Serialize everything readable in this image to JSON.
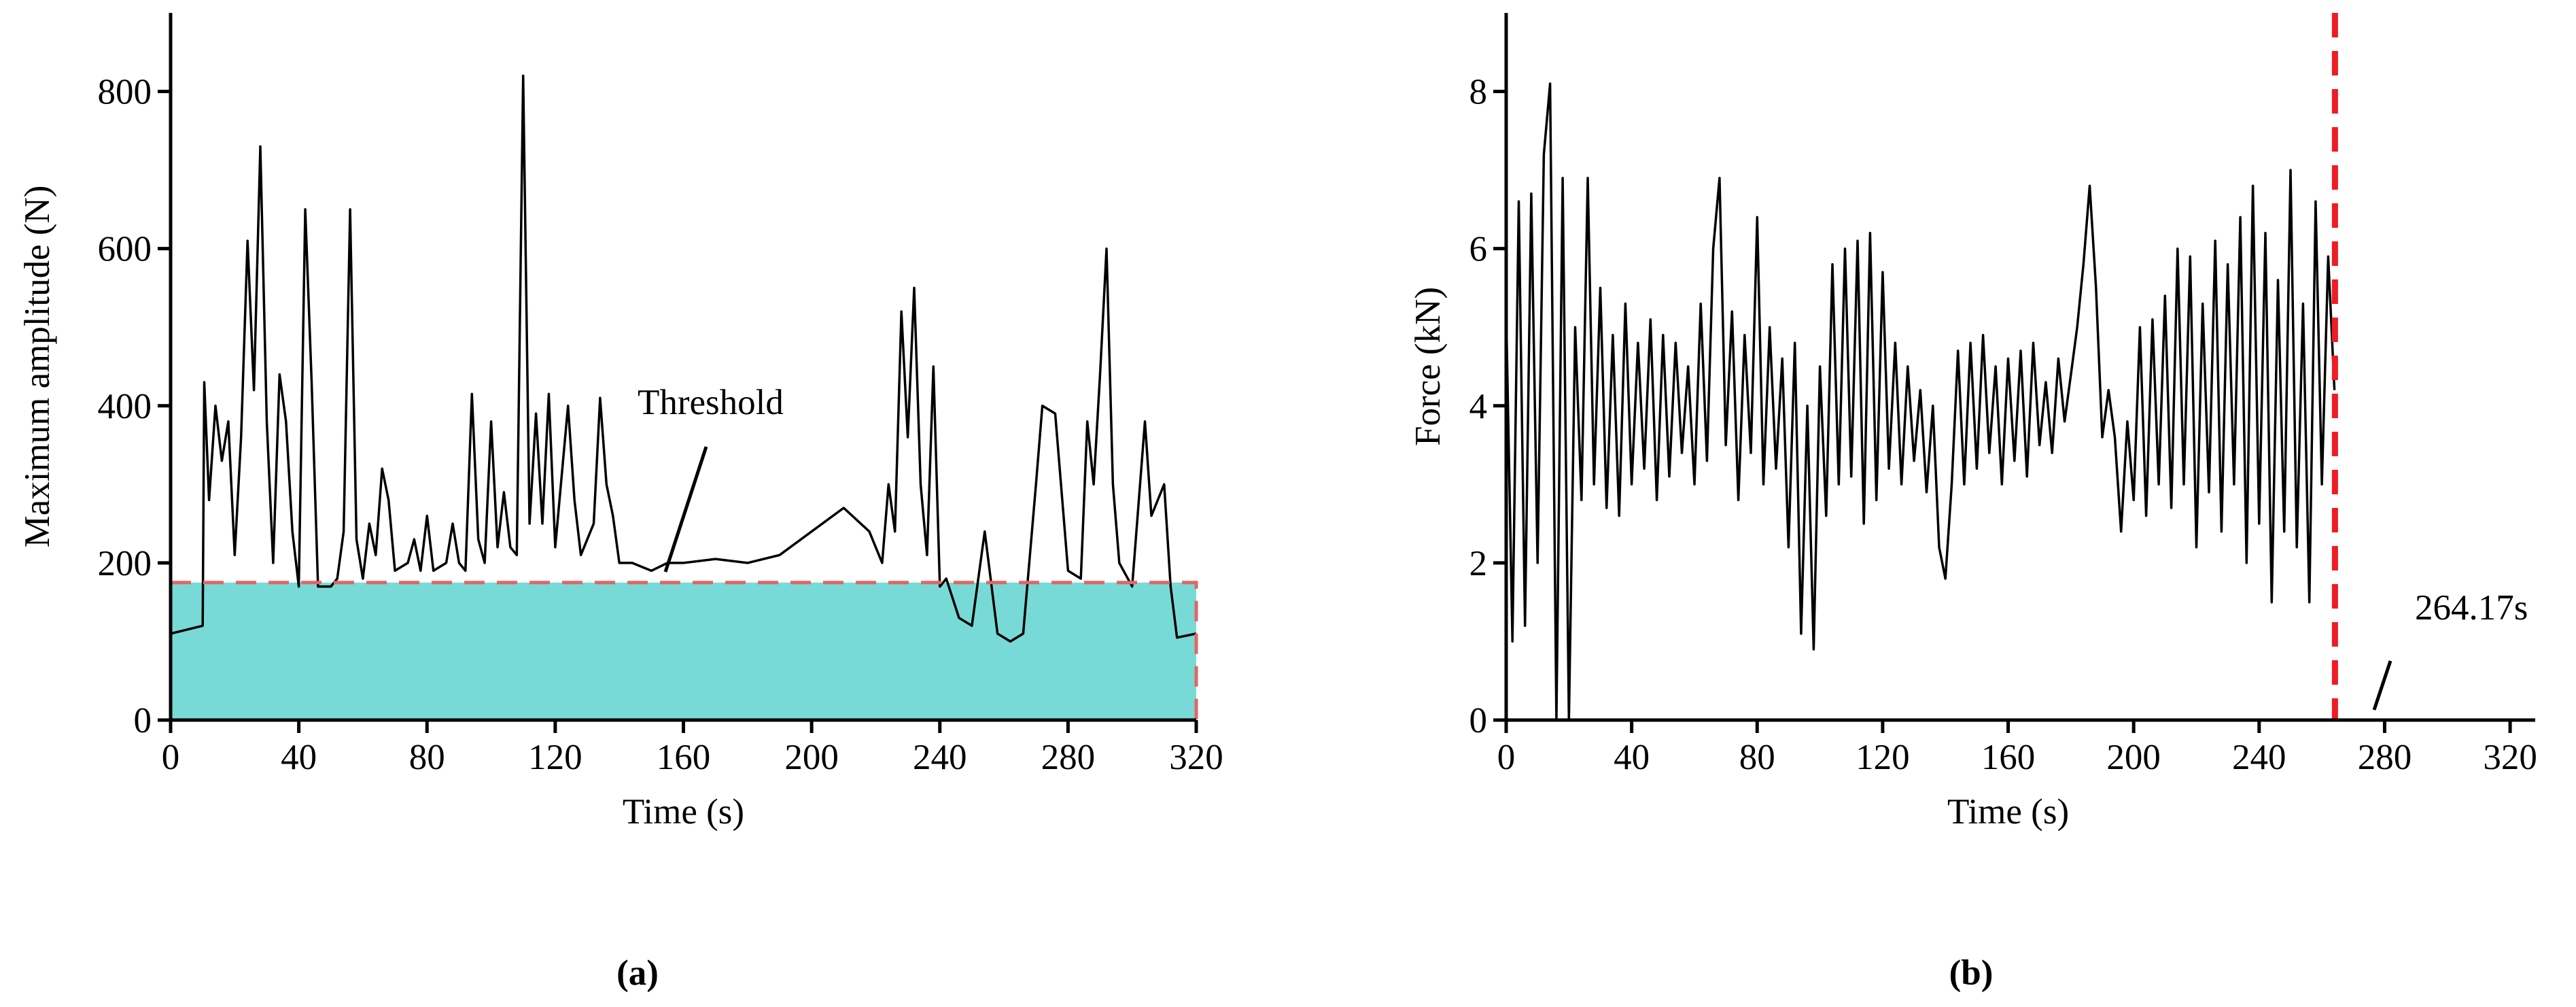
{
  "chart_data": [
    {
      "type": "line",
      "panel_label": "(a)",
      "x_label": "Time (s)",
      "y_label": "Maximum amplitude (N)",
      "color": "#000000",
      "x": [
        0,
        10,
        10.5,
        12,
        14,
        16,
        18,
        20,
        22,
        24,
        26,
        28,
        30,
        32,
        34,
        36,
        38,
        40,
        42,
        44,
        46,
        50,
        52,
        54,
        56,
        58,
        60,
        62,
        64,
        66,
        68,
        70,
        74,
        76,
        78,
        80,
        82,
        86,
        88,
        90,
        92,
        94,
        96,
        98,
        100,
        102,
        104,
        106,
        108,
        110,
        112,
        114,
        116,
        118,
        120,
        124,
        126,
        128,
        132,
        134,
        136,
        138,
        140,
        144,
        150,
        155,
        160,
        170,
        180,
        190,
        200,
        210,
        218,
        222,
        224,
        226,
        228,
        230,
        232,
        234,
        236,
        238,
        240,
        242,
        246,
        250,
        254,
        258,
        262,
        266,
        270,
        272,
        276,
        280,
        284,
        286,
        288,
        290,
        292,
        294,
        296,
        300,
        304,
        306,
        310,
        312,
        314,
        320
      ],
      "values": [
        110,
        120,
        430,
        280,
        400,
        330,
        380,
        210,
        360,
        610,
        420,
        730,
        380,
        200,
        440,
        380,
        240,
        170,
        650,
        430,
        170,
        170,
        180,
        240,
        650,
        230,
        180,
        250,
        210,
        320,
        280,
        190,
        200,
        230,
        190,
        260,
        190,
        200,
        250,
        200,
        190,
        415,
        230,
        200,
        380,
        220,
        290,
        220,
        210,
        820,
        250,
        390,
        250,
        415,
        220,
        400,
        280,
        210,
        250,
        410,
        300,
        260,
        200,
        200,
        190,
        200,
        200,
        205,
        200,
        210,
        240,
        270,
        240,
        200,
        300,
        240,
        520,
        360,
        550,
        300,
        210,
        450,
        170,
        180,
        130,
        120,
        240,
        110,
        100,
        110,
        300,
        400,
        390,
        190,
        180,
        380,
        300,
        440,
        600,
        300,
        200,
        170,
        380,
        260,
        300,
        170,
        105,
        110
      ],
      "threshold": {
        "value": 175,
        "label": "Threshold"
      },
      "threshold_color": "#e06666",
      "fill_color": "#5fd3cf",
      "xlim": [
        0,
        320
      ],
      "xticks": [
        0,
        40,
        80,
        120,
        160,
        200,
        240,
        280,
        320
      ],
      "ylim": [
        0,
        900
      ],
      "yticks": [
        0,
        200,
        400,
        600,
        800
      ]
    },
    {
      "type": "line",
      "panel_label": "(b)",
      "x_label": "Time (s)",
      "y_label": "Force (kN)",
      "color": "#000000",
      "x": [
        0,
        2,
        4,
        6,
        8,
        10,
        12,
        14,
        16,
        18,
        20,
        22,
        24,
        26,
        28,
        30,
        32,
        34,
        36,
        38,
        40,
        42,
        44,
        46,
        48,
        50,
        52,
        54,
        56,
        58,
        60,
        62,
        64,
        66,
        68,
        70,
        72,
        74,
        76,
        78,
        80,
        82,
        84,
        86,
        88,
        90,
        92,
        94,
        96,
        98,
        100,
        102,
        104,
        106,
        108,
        110,
        112,
        114,
        116,
        118,
        120,
        122,
        124,
        126,
        128,
        130,
        132,
        134,
        136,
        138,
        140,
        142,
        144,
        146,
        148,
        150,
        152,
        154,
        156,
        158,
        160,
        162,
        164,
        166,
        168,
        170,
        172,
        174,
        176,
        178,
        180,
        182,
        184,
        186,
        188,
        190,
        192,
        194,
        196,
        198,
        200,
        202,
        204,
        206,
        208,
        210,
        212,
        214,
        216,
        218,
        220,
        222,
        224,
        226,
        228,
        230,
        232,
        234,
        236,
        238,
        240,
        242,
        244,
        246,
        248,
        250,
        252,
        254,
        256,
        258,
        260,
        262,
        264
      ],
      "values": [
        5.2,
        1.0,
        6.6,
        1.2,
        6.7,
        2.0,
        7.2,
        8.1,
        0.0,
        6.9,
        0.0,
        5.0,
        2.8,
        6.9,
        3.0,
        5.5,
        2.7,
        4.9,
        2.6,
        5.3,
        3.0,
        4.8,
        3.2,
        5.1,
        2.8,
        4.9,
        3.1,
        4.8,
        3.4,
        4.5,
        3.0,
        5.3,
        3.3,
        6.0,
        6.9,
        3.5,
        5.2,
        2.8,
        4.9,
        3.4,
        6.4,
        3.0,
        5.0,
        3.2,
        4.6,
        2.2,
        4.8,
        1.1,
        4.0,
        0.9,
        4.5,
        2.6,
        5.8,
        3.0,
        6.0,
        3.1,
        6.1,
        2.5,
        6.2,
        2.8,
        5.7,
        3.2,
        4.8,
        3.0,
        4.5,
        3.3,
        4.2,
        2.9,
        4.0,
        2.2,
        1.8,
        3.0,
        4.7,
        3.0,
        4.8,
        3.2,
        4.9,
        3.4,
        4.5,
        3.0,
        4.6,
        3.3,
        4.7,
        3.1,
        4.8,
        3.5,
        4.3,
        3.4,
        4.6,
        3.8,
        4.4,
        5.0,
        5.8,
        6.8,
        5.5,
        3.6,
        4.2,
        3.6,
        2.4,
        3.8,
        2.8,
        5.0,
        2.6,
        5.1,
        3.0,
        5.4,
        2.7,
        6.0,
        3.0,
        5.9,
        2.2,
        5.3,
        2.9,
        6.1,
        2.4,
        5.8,
        3.0,
        6.4,
        2.0,
        6.8,
        2.5,
        6.2,
        1.5,
        5.6,
        2.4,
        7.0,
        2.2,
        5.3,
        1.5,
        6.6,
        3.0,
        5.9,
        4.2
      ],
      "vline": {
        "value": 264.17,
        "label": "264.17s"
      },
      "vline_color": "#ee1c25",
      "xlim": [
        0,
        328
      ],
      "xticks": [
        0,
        40,
        80,
        120,
        160,
        200,
        240,
        280,
        320
      ],
      "ylim": [
        0,
        9
      ],
      "yticks": [
        0,
        2,
        4,
        6,
        8
      ]
    }
  ]
}
